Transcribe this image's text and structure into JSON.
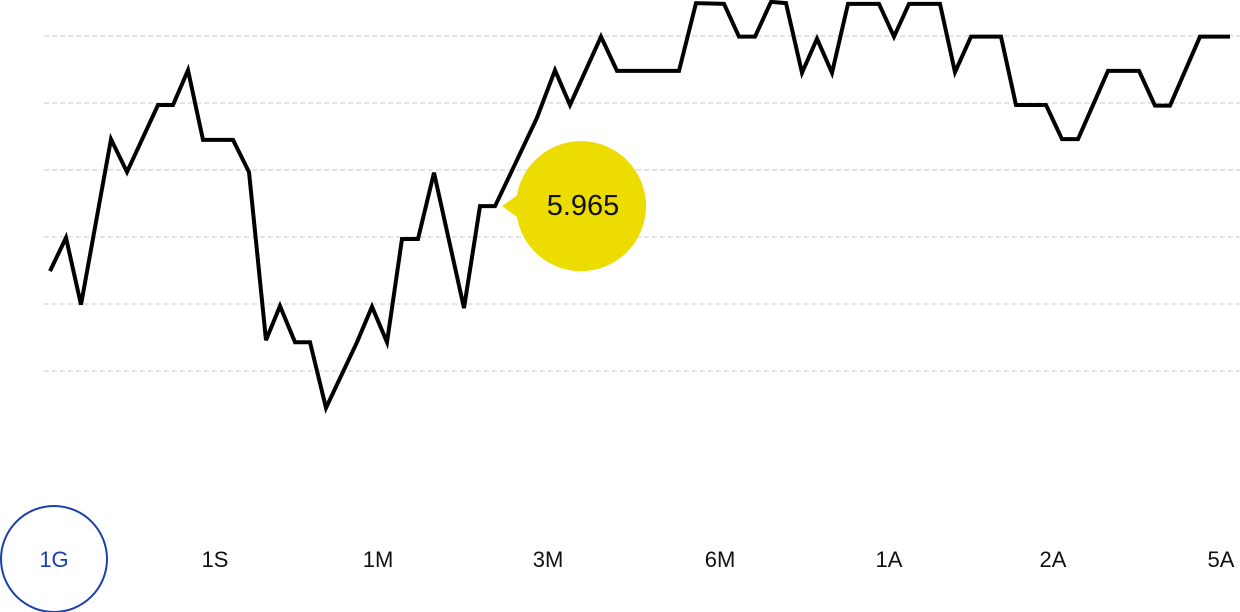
{
  "chart_data": {
    "type": "line",
    "x": [
      0,
      16,
      31,
      61,
      77,
      108,
      123,
      138,
      153,
      183,
      199,
      216,
      230,
      245,
      260,
      276,
      307,
      322,
      337,
      352,
      368,
      384,
      414,
      430,
      445,
      461,
      487,
      505,
      520,
      551,
      567,
      629,
      646,
      674,
      689,
      705,
      721,
      736,
      752,
      767,
      782,
      798,
      829,
      844,
      859,
      890,
      905,
      921,
      951,
      966,
      996,
      1012,
      1028,
      1043,
      1058,
      1089,
      1105,
      1120,
      1150,
      1180
    ],
    "series": [
      {
        "color": "#000000",
        "values": [
          1.49,
          1.99,
          0.99,
          3.46,
          2.97,
          3.97,
          3.97,
          4.49,
          3.45,
          3.45,
          2.97,
          0.46,
          0.97,
          0.43,
          0.43,
          -0.55,
          0.43,
          0.96,
          0.43,
          1.97,
          1.97,
          2.96,
          0.94,
          2.46,
          2.46,
          2.96,
          3.78,
          4.49,
          3.97,
          4.99,
          4.48,
          4.48,
          5.49,
          5.48,
          4.99,
          4.99,
          5.51,
          5.49,
          4.45,
          4.96,
          4.45,
          5.48,
          5.48,
          4.99,
          5.48,
          5.48,
          4.46,
          4.99,
          4.99,
          3.97,
          3.97,
          3.46,
          3.46,
          3.97,
          4.48,
          4.48,
          3.96,
          3.96,
          4.99,
          4.99
        ]
      }
    ],
    "xlim": [
      0,
      1180
    ],
    "ylim": [
      -1.5,
      5.55
    ],
    "ygrid": [
      0,
      1,
      2,
      3,
      4,
      5
    ],
    "tooltip": {
      "text": "5.965",
      "index": 23,
      "color": "#ecdc00"
    },
    "periods": [
      "1G",
      "1S",
      "1M",
      "3M",
      "6M",
      "1A",
      "2A",
      "5A"
    ],
    "selected_period": 0,
    "selected_color": "#1a3fb0"
  }
}
